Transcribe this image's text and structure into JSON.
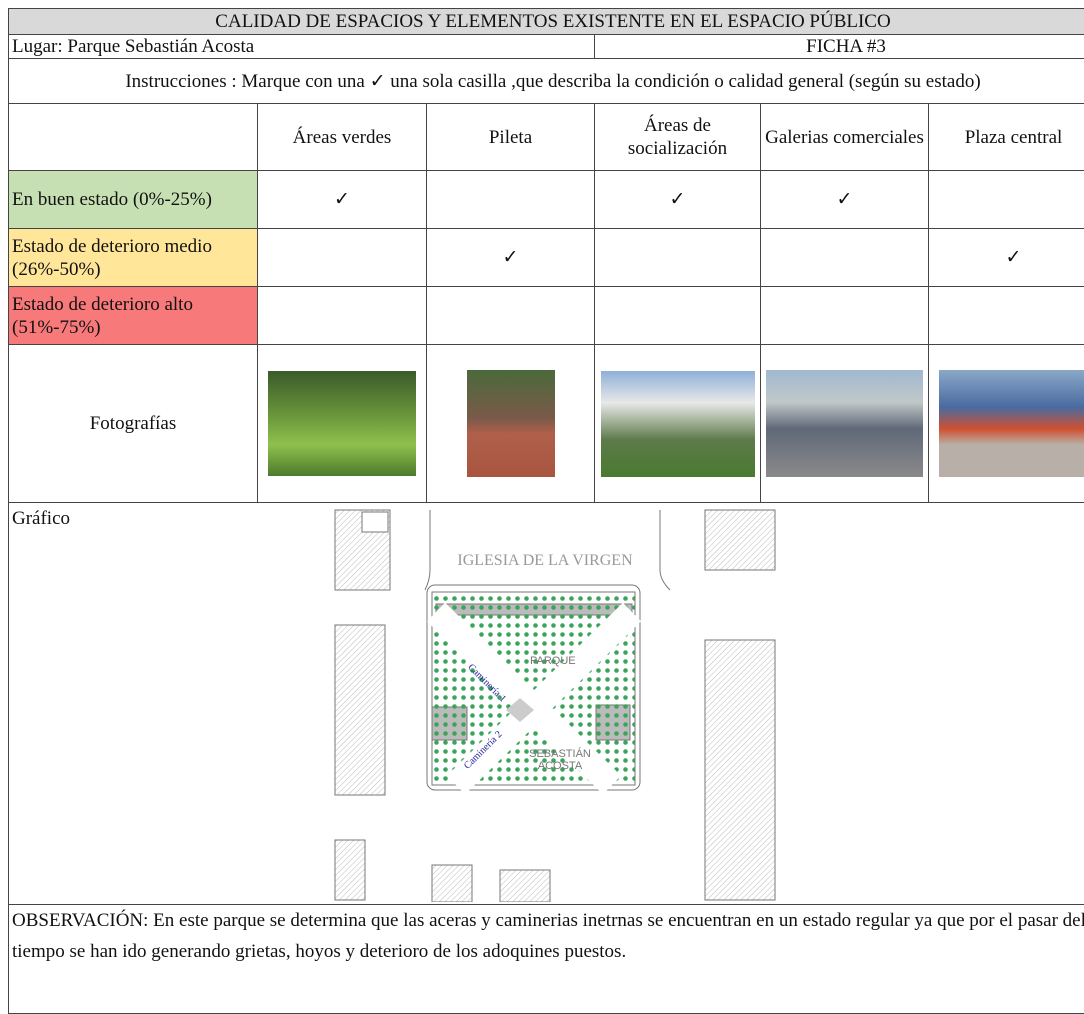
{
  "header": {
    "title": "CALIDAD DE ESPACIOS Y ELEMENTOS EXISTENTE EN EL ESPACIO PÚBLICO"
  },
  "info": {
    "place": "Lugar: Parque Sebastián Acosta",
    "sheet": "FICHA #3"
  },
  "instructions": "Instrucciones : Marque con una ✓ una sola casilla ,que describa la condición o calidad general (según su estado)",
  "table": {
    "columns": [
      "Áreas verdes",
      "Pileta",
      "Áreas de socialización",
      "Galerias comerciales",
      "Plaza central"
    ],
    "rows": [
      {
        "label": "En buen estado (0%-25%)",
        "color": "#c6e0b4",
        "checks": [
          "✓",
          null,
          "✓",
          "✓",
          null
        ]
      },
      {
        "label": "Estado de deterioro medio (26%-50%)",
        "color": "#ffe699",
        "checks": [
          null,
          "✓",
          null,
          null,
          "✓"
        ]
      },
      {
        "label": "Estado de deterioro alto (51%-75%)",
        "color": "#f8797a",
        "checks": [
          null,
          null,
          null,
          null,
          null
        ]
      }
    ],
    "photos_label": "Fotografías"
  },
  "graphic": {
    "label": "Gráfico",
    "church": "IGLESIA DE LA VIRGEN",
    "park_top": "PARQUE",
    "park_bottom_1": "SEBASTIÁN",
    "park_bottom_2": "ACOSTA",
    "path_1": "Caminería 1",
    "path_2": "Caminería 2"
  },
  "observation": "OBSERVACIÓN: En este parque se determina que las aceras y caminerias inetrnas se encuentran en un estado regular ya que por el pasar del tiempo se han ido generando grietas, hoyos y deterioro de los adoquines puestos."
}
